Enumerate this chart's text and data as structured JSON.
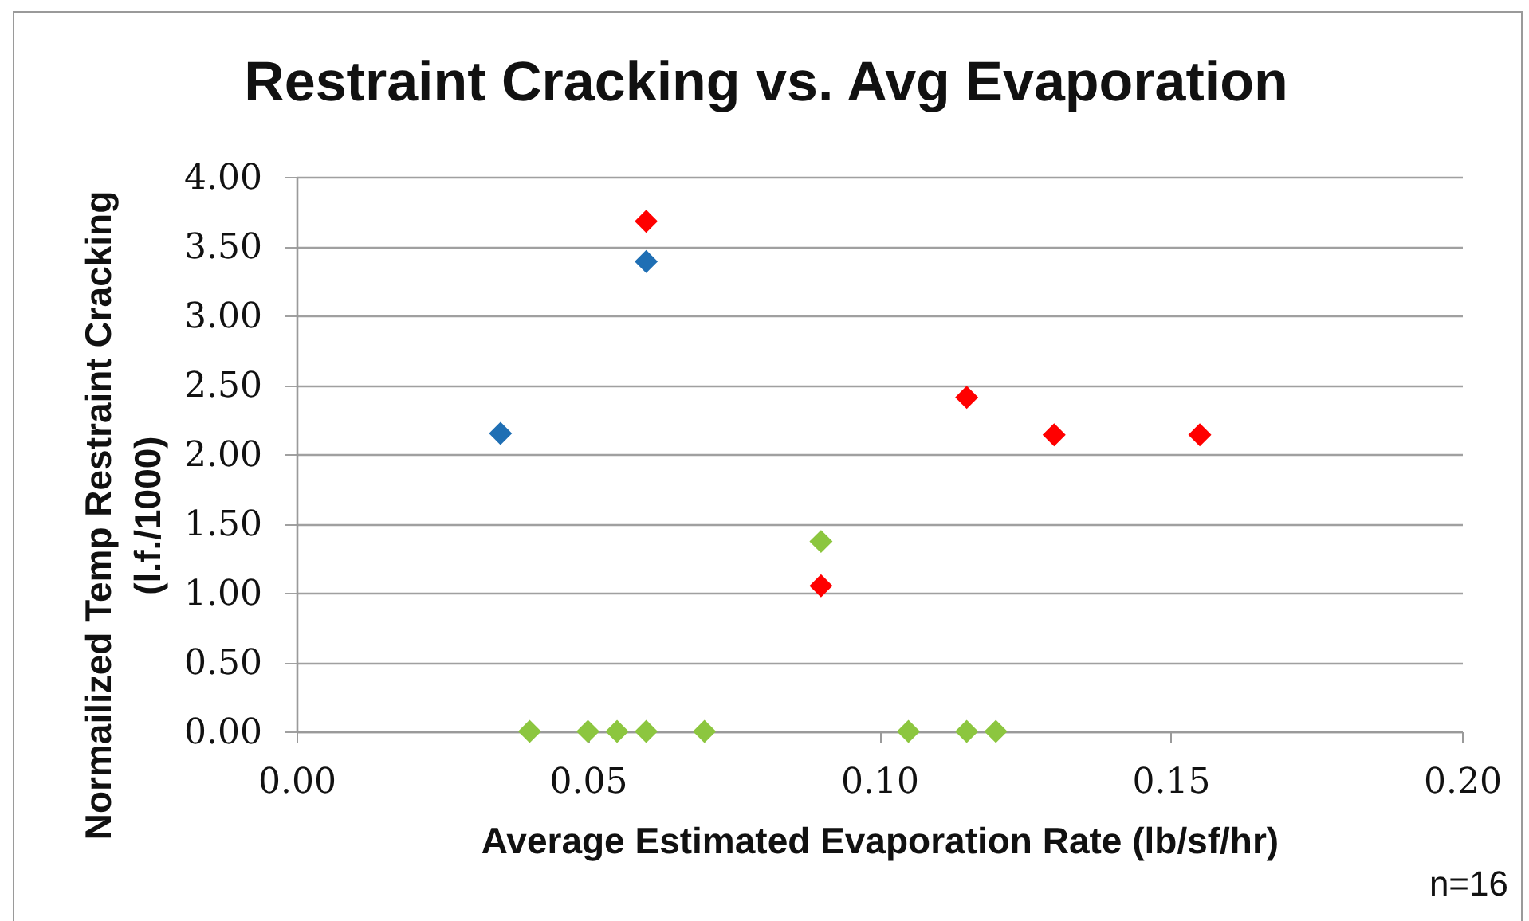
{
  "chart_data": {
    "type": "scatter",
    "title": "Restraint Cracking vs. Avg Evaporation",
    "xlabel": "Average Estimated Evaporation Rate (lb/sf/hr)",
    "ylabel": "Normailized Temp Restraint Cracking\n(l.f./1000)",
    "annotations": [
      "n=16"
    ],
    "xlim": [
      0,
      0.2
    ],
    "xticks": [
      {
        "value": 0,
        "label": "0.00"
      },
      {
        "value": 0.05,
        "label": "0.05"
      },
      {
        "value": 0.1,
        "label": "0.10"
      },
      {
        "value": 0.15,
        "label": "0.15"
      },
      {
        "value": 0.2,
        "label": "0.20"
      }
    ],
    "ylim": [
      0,
      4
    ],
    "yticks": [
      {
        "value": 0,
        "label": "0.00"
      },
      {
        "value": 0.5,
        "label": "0.50"
      },
      {
        "value": 1,
        "label": "1.00"
      },
      {
        "value": 1.5,
        "label": "1.50"
      },
      {
        "value": 2,
        "label": "2.00"
      },
      {
        "value": 2.5,
        "label": "2.50"
      },
      {
        "value": 3,
        "label": "3.00"
      },
      {
        "value": 3.5,
        "label": "3.50"
      },
      {
        "value": 4,
        "label": "4.00"
      }
    ],
    "grid": "y",
    "marker": "diamond",
    "series": [
      {
        "color": "#1f6fb4",
        "x": [
          0.035,
          0.06
        ],
        "values": [
          2.15,
          3.39
        ]
      },
      {
        "color": "#ff0000",
        "x": [
          0.06,
          0.09,
          0.115,
          0.13,
          0.155
        ],
        "values": [
          3.68,
          1.05,
          2.41,
          2.14,
          2.14
        ]
      },
      {
        "color": "#8cc63f",
        "x": [
          0.04,
          0.05,
          0.055,
          0.06,
          0.07,
          0.09,
          0.105,
          0.115,
          0.12
        ],
        "values": [
          0,
          0,
          0,
          0,
          0,
          1.37,
          0,
          0,
          0
        ]
      }
    ]
  }
}
